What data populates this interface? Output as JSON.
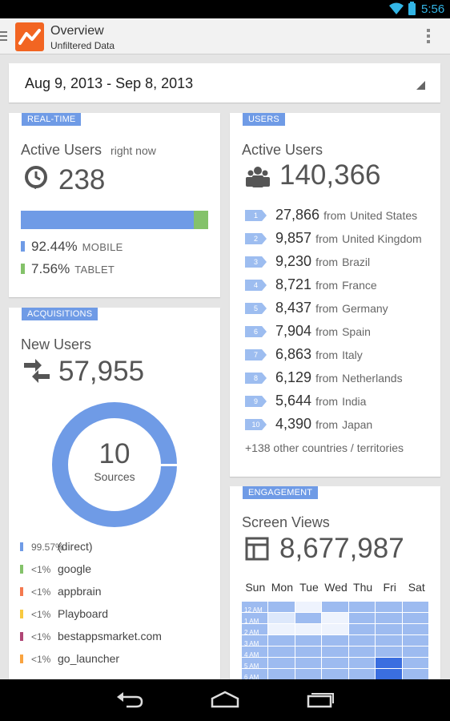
{
  "status_bar": {
    "time": "5:56",
    "icons": [
      "wifi-icon",
      "battery-icon"
    ],
    "accent": "#33b5e5"
  },
  "action_bar": {
    "title": "Overview",
    "subtitle": "Unfiltered Data",
    "logo_color": "#f26522"
  },
  "date_range": {
    "value": "Aug 9, 2013 - Sep 8, 2013"
  },
  "realtime": {
    "label": "REAL-TIME",
    "heading": "Active Users",
    "heading_suffix": "right now",
    "count": "238",
    "mobile_fraction": 0.9244,
    "tablet_fraction": 0.0756,
    "legend": [
      {
        "value": "92.44%",
        "category": "MOBILE",
        "color": "#6f9be6"
      },
      {
        "value": "7.56%",
        "category": "TABLET",
        "color": "#84c26a"
      }
    ]
  },
  "acquisitions": {
    "label": "ACQUISITIONS",
    "heading": "New Users",
    "count": "57,955",
    "donut_value": "10",
    "donut_caption": "Sources",
    "donut_main_fraction": 0.9957,
    "sources": [
      {
        "pct": "99.57%",
        "name": "(direct)",
        "color": "#6f9be6"
      },
      {
        "pct": "<1%",
        "name": "google",
        "color": "#84c26a"
      },
      {
        "pct": "<1%",
        "name": "appbrain",
        "color": "#f4794f"
      },
      {
        "pct": "<1%",
        "name": "Playboard",
        "color": "#f8c940"
      },
      {
        "pct": "<1%",
        "name": "bestappsmarket.com",
        "color": "#b04675"
      },
      {
        "pct": "<1%",
        "name": "go_launcher",
        "color": "#f9a33f"
      }
    ]
  },
  "users": {
    "label": "USERS",
    "heading": "Active Users",
    "count": "140,366",
    "from_word": "from",
    "countries": [
      {
        "rank": "1",
        "value": "27,866",
        "country": "United States"
      },
      {
        "rank": "2",
        "value": "9,857",
        "country": "United Kingdom"
      },
      {
        "rank": "3",
        "value": "9,230",
        "country": "Brazil"
      },
      {
        "rank": "4",
        "value": "8,721",
        "country": "France"
      },
      {
        "rank": "5",
        "value": "8,437",
        "country": "Germany"
      },
      {
        "rank": "6",
        "value": "7,904",
        "country": "Spain"
      },
      {
        "rank": "7",
        "value": "6,863",
        "country": "Italy"
      },
      {
        "rank": "8",
        "value": "6,129",
        "country": "Netherlands"
      },
      {
        "rank": "9",
        "value": "5,644",
        "country": "India"
      },
      {
        "rank": "10",
        "value": "4,390",
        "country": "Japan"
      }
    ],
    "other": "+138 other countries / territories"
  },
  "engagement": {
    "label": "ENGAGEMENT",
    "heading": "Screen Views",
    "count": "8,677,987",
    "days": [
      "Sun",
      "Mon",
      "Tue",
      "Wed",
      "Thu",
      "Fri",
      "Sat"
    ],
    "hours": [
      "12 AM",
      "1 AM",
      "2 AM",
      "3 AM",
      "4 AM",
      "5 AM",
      "6 AM"
    ],
    "levels": [
      [
        0.1,
        0.6,
        0.1,
        0.6,
        0.6,
        0.6,
        0.6
      ],
      [
        0.1,
        0.15,
        0.6,
        0.1,
        0.6,
        0.6,
        0.6
      ],
      [
        0.1,
        0.1,
        0.1,
        0.1,
        0.6,
        0.6,
        0.6
      ],
      [
        0.6,
        0.6,
        0.6,
        0.6,
        0.6,
        0.6,
        0.6
      ],
      [
        0.6,
        0.6,
        0.6,
        0.6,
        0.6,
        0.6,
        0.6
      ],
      [
        0.6,
        0.6,
        0.6,
        0.6,
        0.6,
        0.9,
        0.6
      ],
      [
        0.6,
        0.6,
        0.6,
        0.6,
        0.6,
        0.9,
        0.6
      ]
    ]
  },
  "nav": {
    "buttons": [
      "back-icon",
      "home-icon",
      "recents-icon"
    ]
  }
}
